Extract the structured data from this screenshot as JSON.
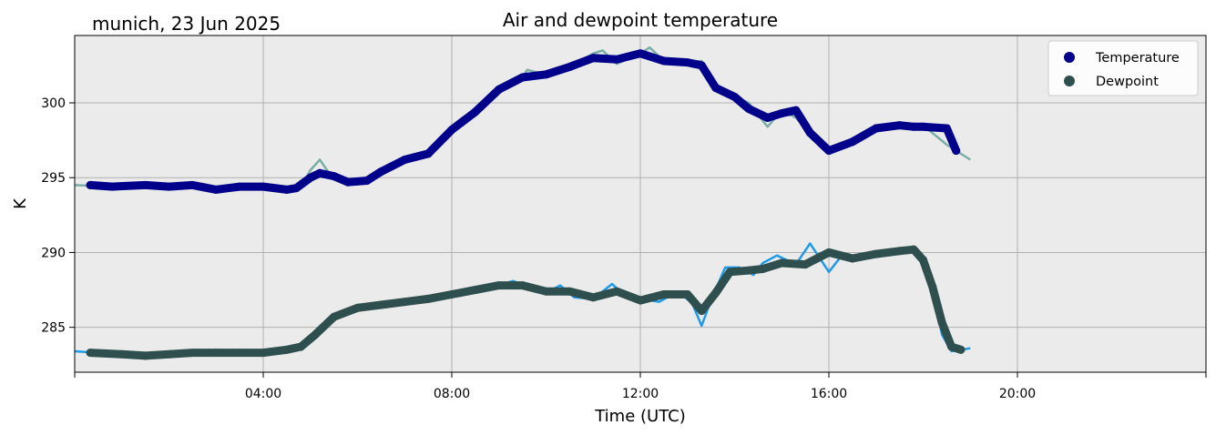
{
  "chart_data": {
    "type": "line",
    "title": "Air and dewpoint temperature",
    "subtitle": "munich, 23 Jun 2025",
    "xlabel": "Time (UTC)",
    "ylabel": "K",
    "x_unit": "hours UTC",
    "xlim": [
      0,
      24
    ],
    "ylim": [
      282,
      304.5
    ],
    "xticks": [
      {
        "value": 4,
        "label": "04:00"
      },
      {
        "value": 8,
        "label": "08:00"
      },
      {
        "value": 12,
        "label": "12:00"
      },
      {
        "value": 16,
        "label": "16:00"
      },
      {
        "value": 20,
        "label": "20:00"
      }
    ],
    "yticks": [
      285,
      290,
      295,
      300
    ],
    "grid": true,
    "legend_position": "top-right",
    "colors": {
      "background": "#ebebeb",
      "grid": "#b0b0b0",
      "temperature_smooth": "#00008b",
      "temperature_raw": "#7aada6",
      "dewpoint_smooth": "#2f4f4f",
      "dewpoint_raw": "#1e9ae8"
    },
    "series": [
      {
        "name": "Temperature",
        "role": "smoothed",
        "x": [
          0.33,
          0.8,
          1.5,
          2.0,
          2.5,
          3.0,
          3.5,
          4.0,
          4.5,
          4.7,
          5.0,
          5.2,
          5.5,
          5.8,
          6.2,
          6.5,
          7.0,
          7.5,
          8.0,
          8.5,
          9.0,
          9.5,
          10.0,
          10.5,
          11.0,
          11.5,
          12.0,
          12.5,
          13.0,
          13.3,
          13.6,
          14.0,
          14.3,
          14.7,
          15.0,
          15.3,
          15.6,
          16.0,
          16.5,
          17.0,
          17.5,
          17.8,
          18.0,
          18.5,
          18.7
        ],
        "values": [
          294.5,
          294.4,
          294.5,
          294.4,
          294.5,
          294.2,
          294.4,
          294.4,
          294.2,
          294.3,
          295.0,
          295.3,
          295.1,
          294.7,
          294.8,
          295.4,
          296.2,
          296.6,
          298.2,
          299.4,
          300.9,
          301.7,
          301.9,
          302.4,
          303.0,
          302.9,
          303.3,
          302.8,
          302.7,
          302.5,
          301.0,
          300.4,
          299.6,
          299.0,
          299.3,
          299.5,
          298.0,
          296.8,
          297.4,
          298.3,
          298.5,
          298.4,
          298.4,
          298.3,
          296.8
        ]
      },
      {
        "name": "Dewpoint",
        "role": "smoothed",
        "x": [
          0.33,
          1.0,
          1.5,
          2.0,
          2.5,
          3.0,
          3.5,
          4.0,
          4.5,
          4.8,
          5.1,
          5.5,
          6.0,
          6.5,
          7.0,
          7.5,
          8.0,
          8.5,
          9.0,
          9.5,
          10.0,
          10.5,
          11.0,
          11.5,
          12.0,
          12.5,
          13.0,
          13.3,
          13.6,
          13.9,
          14.3,
          14.6,
          15.0,
          15.5,
          16.0,
          16.5,
          17.0,
          17.5,
          17.8,
          18.0,
          18.2,
          18.4,
          18.6,
          18.8
        ],
        "values": [
          283.3,
          283.2,
          283.1,
          283.2,
          283.3,
          283.3,
          283.3,
          283.3,
          283.5,
          283.7,
          284.5,
          285.7,
          286.3,
          286.5,
          286.7,
          286.9,
          287.2,
          287.5,
          287.8,
          287.8,
          287.4,
          287.4,
          287.0,
          287.4,
          286.8,
          287.2,
          287.2,
          286.1,
          287.3,
          288.7,
          288.8,
          288.9,
          289.3,
          289.2,
          290.0,
          289.6,
          289.9,
          290.1,
          290.2,
          289.5,
          287.7,
          285.3,
          283.7,
          283.5
        ]
      },
      {
        "name": "",
        "role": "raw temperature",
        "x": [
          0,
          0.8,
          1.5,
          2.0,
          2.5,
          3.0,
          3.5,
          4.0,
          4.5,
          4.8,
          5.0,
          5.2,
          5.4,
          5.6,
          5.8,
          6.2,
          6.5,
          7.0,
          7.5,
          8.0,
          8.5,
          9.0,
          9.5,
          9.6,
          10.0,
          10.5,
          11.0,
          11.2,
          11.5,
          12.0,
          12.2,
          12.5,
          13.0,
          13.3,
          13.6,
          13.8,
          14.0,
          14.3,
          14.7,
          15.0,
          15.3,
          15.6,
          16.0,
          16.5,
          17.0,
          17.5,
          17.8,
          18.0,
          18.5,
          19.0
        ],
        "values": [
          294.5,
          294.4,
          294.5,
          294.4,
          294.5,
          294.2,
          294.4,
          294.4,
          294.2,
          294.4,
          295.5,
          296.2,
          295.3,
          295.0,
          294.7,
          294.8,
          295.4,
          296.2,
          296.6,
          298.2,
          299.4,
          300.9,
          301.7,
          302.2,
          301.9,
          302.4,
          303.3,
          303.5,
          302.6,
          303.3,
          303.7,
          302.8,
          302.7,
          302.8,
          301.0,
          300.5,
          300.4,
          300.0,
          298.4,
          299.5,
          299.0,
          298.0,
          296.8,
          297.4,
          298.3,
          298.5,
          298.3,
          298.5,
          297.2,
          296.2
        ]
      },
      {
        "name": "",
        "role": "raw dewpoint",
        "x": [
          0,
          1.0,
          1.5,
          2.0,
          2.5,
          3.0,
          3.5,
          4.0,
          4.5,
          4.8,
          5.1,
          5.5,
          6.0,
          6.5,
          7.0,
          7.5,
          8.0,
          8.5,
          9.0,
          9.3,
          9.6,
          10.0,
          10.3,
          10.6,
          11.0,
          11.4,
          11.7,
          12.0,
          12.4,
          12.8,
          13.1,
          13.3,
          13.5,
          13.8,
          14.1,
          14.4,
          14.6,
          14.9,
          15.3,
          15.6,
          16.0,
          16.3,
          16.6,
          17.0,
          17.4,
          17.8,
          18.0,
          18.2,
          18.4,
          18.6,
          19.0
        ],
        "values": [
          283.4,
          283.2,
          283.1,
          283.2,
          283.3,
          283.3,
          283.3,
          283.3,
          283.5,
          283.7,
          284.5,
          285.7,
          286.3,
          286.5,
          286.7,
          286.9,
          287.2,
          287.5,
          287.8,
          288.1,
          287.7,
          287.3,
          287.8,
          287.0,
          286.9,
          287.9,
          287.0,
          286.9,
          286.7,
          287.4,
          286.6,
          285.1,
          286.8,
          289.0,
          289.0,
          288.5,
          289.3,
          289.8,
          289.2,
          290.6,
          288.7,
          289.9,
          289.6,
          290.0,
          289.9,
          290.4,
          289.5,
          287.6,
          284.5,
          283.4,
          283.6
        ]
      }
    ]
  }
}
